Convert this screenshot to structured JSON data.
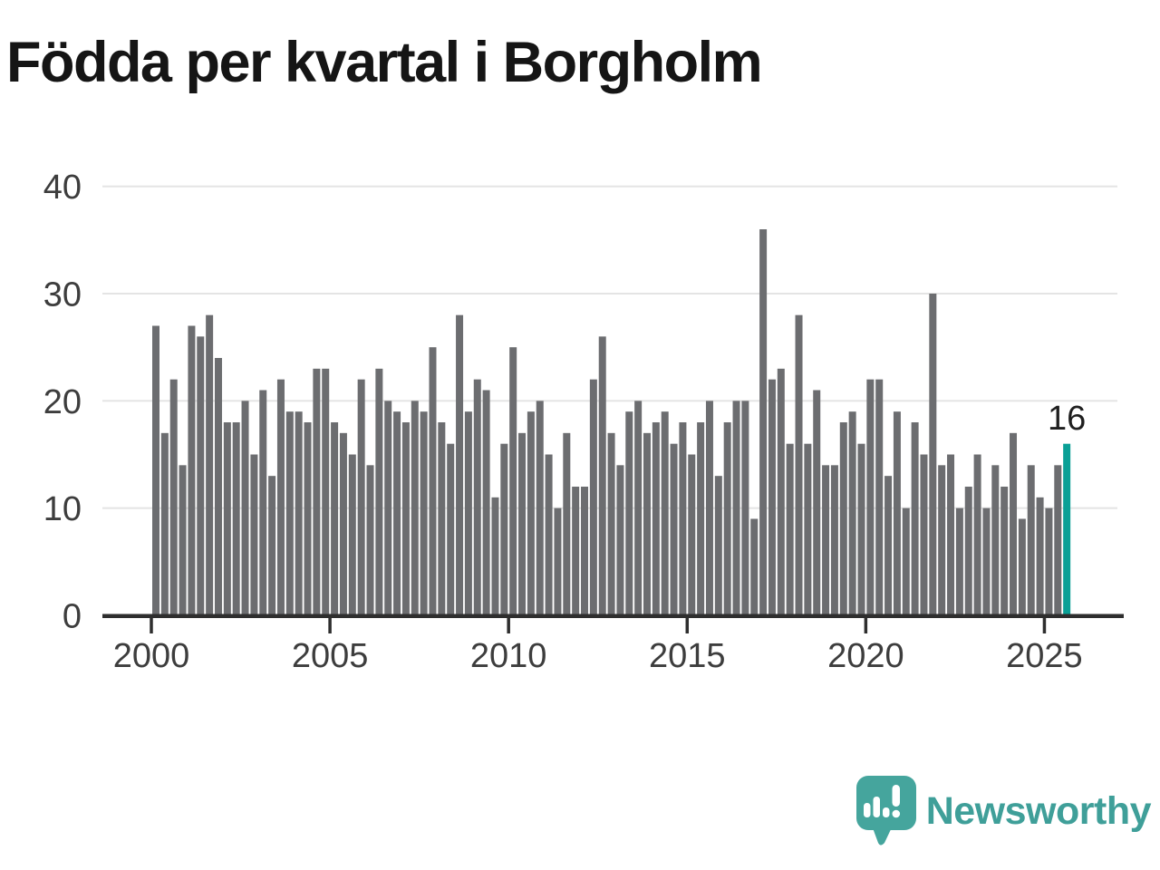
{
  "title": "Födda per kvartal i Borgholm",
  "logo": {
    "text": "Newsworthy",
    "icon": "newsworthy-speech-bubble-chart-icon"
  },
  "colors": {
    "background": "#ffffff",
    "title": "#151515",
    "bar": "#6c6d70",
    "highlight": "#0aa096",
    "grid": "#e4e4e4",
    "axis": "#2e2e2e",
    "tick_label": "#3d3d3d",
    "annotation": "#1f1f1f",
    "logo": "#3f9f99"
  },
  "chart_data": {
    "type": "bar",
    "title": "Födda per kvartal i Borgholm",
    "xlabel": "",
    "ylabel": "",
    "ylim": [
      0,
      40
    ],
    "y_ticks": [
      0,
      10,
      20,
      30,
      40
    ],
    "x_tick_labels": [
      "2000",
      "2005",
      "2010",
      "2015",
      "2020",
      "2025"
    ],
    "grid": "horizontal",
    "legend": "none",
    "x": [
      "2000Q1",
      "2000Q2",
      "2000Q3",
      "2000Q4",
      "2001Q1",
      "2001Q2",
      "2001Q3",
      "2001Q4",
      "2002Q1",
      "2002Q2",
      "2002Q3",
      "2002Q4",
      "2003Q1",
      "2003Q2",
      "2003Q3",
      "2003Q4",
      "2004Q1",
      "2004Q2",
      "2004Q3",
      "2004Q4",
      "2005Q1",
      "2005Q2",
      "2005Q3",
      "2005Q4",
      "2006Q1",
      "2006Q2",
      "2006Q3",
      "2006Q4",
      "2007Q1",
      "2007Q2",
      "2007Q3",
      "2007Q4",
      "2008Q1",
      "2008Q2",
      "2008Q3",
      "2008Q4",
      "2009Q1",
      "2009Q2",
      "2009Q3",
      "2009Q4",
      "2010Q1",
      "2010Q2",
      "2010Q3",
      "2010Q4",
      "2011Q1",
      "2011Q2",
      "2011Q3",
      "2011Q4",
      "2012Q1",
      "2012Q2",
      "2012Q3",
      "2012Q4",
      "2013Q1",
      "2013Q2",
      "2013Q3",
      "2013Q4",
      "2014Q1",
      "2014Q2",
      "2014Q3",
      "2014Q4",
      "2015Q1",
      "2015Q2",
      "2015Q3",
      "2015Q4",
      "2016Q1",
      "2016Q2",
      "2016Q3",
      "2016Q4",
      "2017Q1",
      "2017Q2",
      "2017Q3",
      "2017Q4",
      "2018Q1",
      "2018Q2",
      "2018Q3",
      "2018Q4",
      "2019Q1",
      "2019Q2",
      "2019Q3",
      "2019Q4",
      "2020Q1",
      "2020Q2",
      "2020Q3",
      "2020Q4",
      "2021Q1",
      "2021Q2",
      "2021Q3",
      "2021Q4",
      "2022Q1",
      "2022Q2",
      "2022Q3",
      "2022Q4",
      "2023Q1",
      "2023Q2",
      "2023Q3",
      "2023Q4",
      "2024Q1",
      "2024Q2",
      "2024Q3",
      "2024Q4",
      "2025Q1",
      "2025Q2",
      "2025Q3"
    ],
    "values": [
      27,
      17,
      22,
      14,
      27,
      26,
      28,
      24,
      18,
      18,
      20,
      15,
      21,
      13,
      22,
      19,
      19,
      18,
      23,
      23,
      18,
      17,
      15,
      22,
      14,
      23,
      20,
      19,
      18,
      20,
      19,
      25,
      18,
      16,
      28,
      19,
      22,
      21,
      11,
      16,
      25,
      17,
      19,
      20,
      15,
      10,
      17,
      12,
      12,
      22,
      26,
      17,
      14,
      19,
      20,
      17,
      18,
      19,
      16,
      18,
      15,
      18,
      20,
      13,
      18,
      20,
      20,
      9,
      36,
      22,
      23,
      16,
      28,
      16,
      21,
      14,
      14,
      18,
      19,
      16,
      22,
      22,
      13,
      19,
      10,
      18,
      15,
      30,
      14,
      15,
      10,
      12,
      15,
      10,
      14,
      12,
      17,
      9,
      14,
      11,
      10,
      14,
      16
    ],
    "highlight_index": 102,
    "annotation": {
      "text": "16",
      "x": "2025Q3",
      "value": 16
    }
  }
}
